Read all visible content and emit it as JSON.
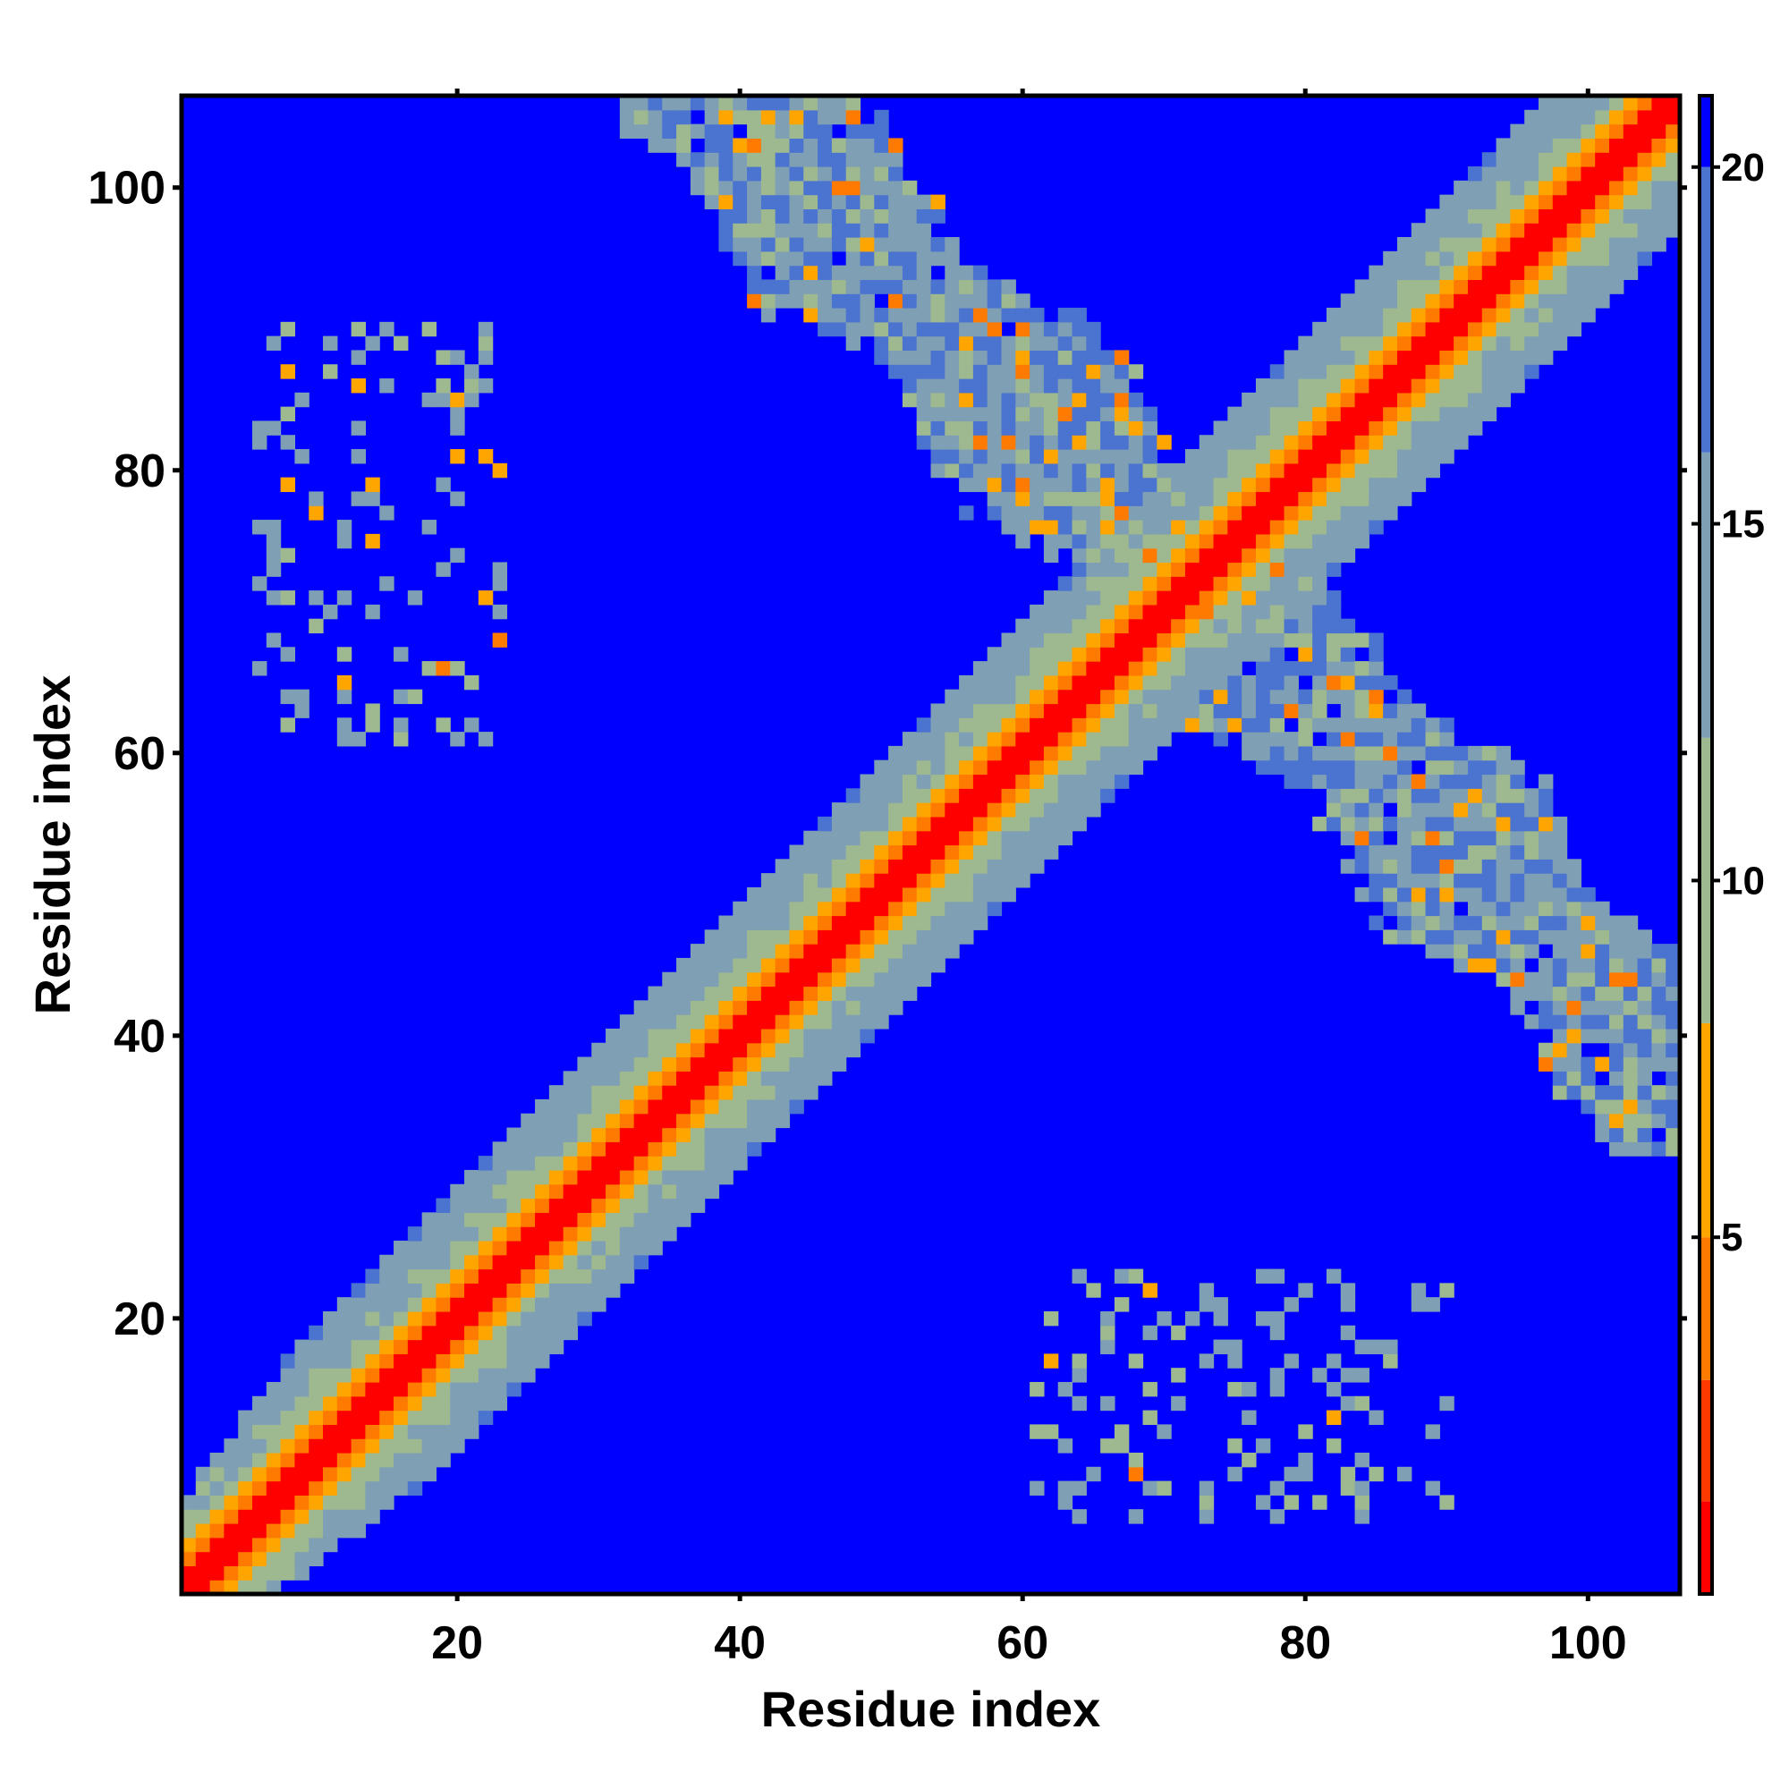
{
  "chart_data": {
    "type": "heatmap",
    "title": "",
    "xlabel": "Residue index",
    "ylabel": "Residue index",
    "xlim": [
      1,
      106
    ],
    "ylim": [
      1,
      106
    ],
    "n_residues": 106,
    "x_ticks": [
      20,
      40,
      60,
      80,
      100
    ],
    "y_ticks": [
      20,
      40,
      60,
      80,
      100
    ],
    "x_tick_labels": [
      "20",
      "40",
      "60",
      "80",
      "100"
    ],
    "y_tick_labels": [
      "20",
      "40",
      "60",
      "80",
      "100"
    ],
    "colorbar": {
      "range": [
        0,
        21
      ],
      "ticks": [
        5,
        10,
        15,
        20
      ],
      "tick_labels": [
        "5",
        "10",
        "15",
        "20"
      ],
      "colors": [
        "#ff0000",
        "#ff3a00",
        "#ff7a00",
        "#ffa500",
        "#9eb890",
        "#7f9fb4",
        "#4b73d0",
        "#0000ff"
      ],
      "thresholds": [
        1.3,
        3.0,
        5.0,
        8.0,
        12.0,
        16.0,
        20.0
      ]
    },
    "bands": [
      {
        "name": "main-diagonal",
        "direction": "parallel",
        "offset_residues": 0,
        "core_halfwidth": 1.6,
        "orange_halfwidth": 3.0,
        "outer_halfwidth": 9.0,
        "extent": [
          1,
          106
        ]
      },
      {
        "name": "anti-diagonal",
        "direction": "antiparallel",
        "residue_sum": 144,
        "center_halfwidth": 7.5,
        "extent": [
          38,
          106
        ]
      }
    ],
    "contact_clusters": [
      {
        "center": [
          13,
          73
        ],
        "x_range": [
          6,
          23
        ],
        "y_range": [
          61,
          90
        ]
      },
      {
        "center": [
          73,
          13
        ],
        "x_range": [
          61,
          90
        ],
        "y_range": [
          6,
          23
        ]
      }
    ],
    "background_value": 21
  }
}
